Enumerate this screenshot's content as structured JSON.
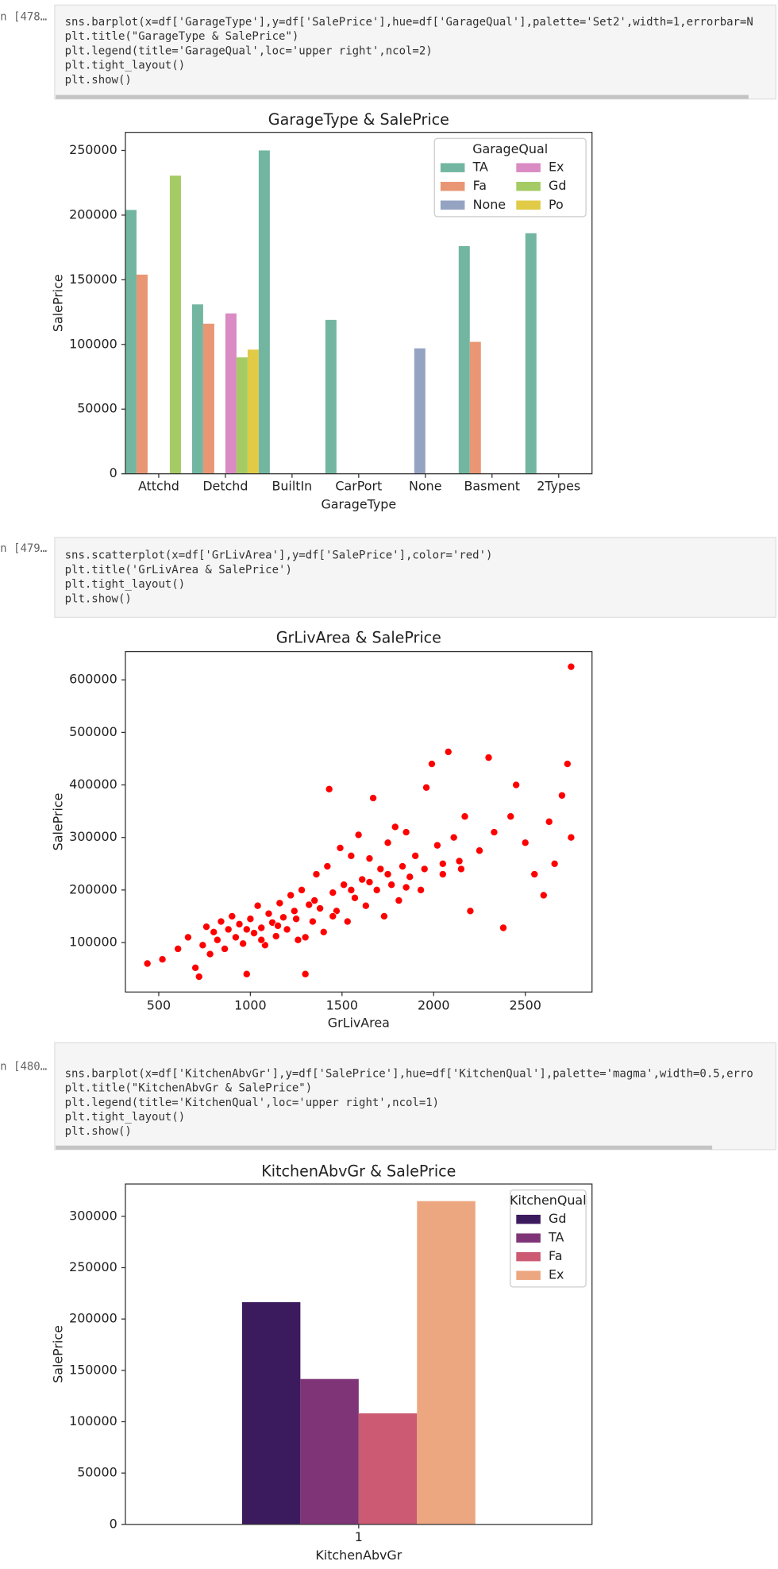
{
  "cells": [
    {
      "prompt": "n [478…",
      "code": [
        "sns.barplot(x=df['GarageType'],y=df['SalePrice'],hue=df['GarageQual'],palette='Set2',width=1,errorbar=N",
        "plt.title(\"GarageType & SalePrice\")",
        "plt.legend(title='GarageQual',loc='upper right',ncol=2)",
        "plt.tight_layout()",
        "plt.show()"
      ]
    },
    {
      "prompt": "n [479…",
      "code": [
        "sns.scatterplot(x=df['GrLivArea'],y=df['SalePrice'],color='red')",
        "plt.title('GrLivArea & SalePrice')",
        "plt.tight_layout()",
        "plt.show()"
      ]
    },
    {
      "prompt": "n [480…",
      "code": [
        "sns.barplot(x=df['KitchenAbvGr'],y=df['SalePrice'],hue=df['KitchenQual'],palette='magma',width=0.5,erro",
        "plt.title(\"KitchenAbvGr & SalePrice\")",
        "plt.legend(title='KitchenQual',loc='upper right',ncol=1)",
        "plt.tight_layout()",
        "plt.show()"
      ]
    }
  ],
  "chart_data": [
    {
      "type": "bar",
      "title": "GarageType & SalePrice",
      "x_label": "GarageType",
      "y_label": "SalePrice",
      "categories": [
        "Attchd",
        "Detchd",
        "BuiltIn",
        "CarPort",
        "None",
        "Basment",
        "2Types"
      ],
      "series": [
        {
          "name": "TA",
          "color": "#72b6a1",
          "values": [
            204000,
            131000,
            250000,
            119000,
            null,
            176000,
            186000
          ]
        },
        {
          "name": "Fa",
          "color": "#e99675",
          "values": [
            154000,
            116000,
            null,
            null,
            null,
            102000,
            null
          ]
        },
        {
          "name": "None",
          "color": "#95a3c3",
          "values": [
            null,
            null,
            null,
            null,
            97000,
            null,
            null
          ]
        },
        {
          "name": "Ex",
          "color": "#da8bc3",
          "values": [
            null,
            124000,
            null,
            null,
            null,
            null,
            null
          ]
        },
        {
          "name": "Gd",
          "color": "#a4cb64",
          "values": [
            230500,
            90000,
            null,
            null,
            null,
            null,
            null
          ]
        },
        {
          "name": "Po",
          "color": "#e1ca46",
          "values": [
            null,
            96000,
            null,
            null,
            null,
            null,
            null
          ]
        }
      ],
      "legend_title": "GarageQual",
      "legend_loc": "upper right",
      "legend_columns": 2,
      "ylim": [
        0,
        264000
      ],
      "yticks": [
        0,
        50000,
        100000,
        150000,
        200000,
        250000
      ]
    },
    {
      "type": "scatter",
      "title": "GrLivArea & SalePrice",
      "x_label": "GrLivArea",
      "y_label": "SalePrice",
      "color": "#ff0000",
      "x": [
        438,
        520,
        605,
        660,
        700,
        720,
        740,
        760,
        780,
        800,
        820,
        840,
        860,
        880,
        900,
        920,
        940,
        960,
        980,
        1000,
        1020,
        1040,
        1060,
        1080,
        1100,
        1120,
        1140,
        1160,
        1180,
        1200,
        1220,
        1240,
        1260,
        1280,
        1300,
        1320,
        1340,
        1360,
        1380,
        1400,
        1420,
        1430,
        1450,
        1470,
        1490,
        1510,
        1530,
        1550,
        1570,
        1590,
        1610,
        1630,
        1650,
        1670,
        1690,
        1710,
        1730,
        1750,
        1770,
        1790,
        1810,
        1830,
        1850,
        1870,
        1900,
        1930,
        1960,
        1990,
        2020,
        2050,
        2080,
        2110,
        2140,
        2170,
        2200,
        2250,
        2300,
        2330,
        2380,
        2420,
        2450,
        2500,
        2550,
        2600,
        2630,
        2660,
        2700,
        2730,
        2750,
        2750,
        1300,
        980,
        1060,
        1150,
        1250,
        1350,
        1450,
        1550,
        1650,
        1750,
        1850,
        1950,
        2050,
        2150
      ],
      "y": [
        60000,
        68000,
        88000,
        110000,
        52000,
        35000,
        95000,
        130000,
        78000,
        120000,
        105000,
        140000,
        88000,
        125000,
        150000,
        110000,
        135000,
        98000,
        40000,
        145000,
        118000,
        170000,
        128000,
        95000,
        155000,
        138000,
        112000,
        175000,
        148000,
        125000,
        190000,
        160000,
        105000,
        200000,
        40000,
        172000,
        140000,
        230000,
        165000,
        120000,
        245000,
        392000,
        195000,
        160000,
        280000,
        210000,
        140000,
        265000,
        185000,
        305000,
        220000,
        170000,
        260000,
        375000,
        200000,
        240000,
        150000,
        290000,
        210000,
        320000,
        180000,
        245000,
        310000,
        225000,
        265000,
        200000,
        395000,
        440000,
        285000,
        230000,
        463000,
        300000,
        255000,
        340000,
        160000,
        275000,
        452000,
        310000,
        128000,
        340000,
        400000,
        290000,
        230000,
        190000,
        330000,
        250000,
        380000,
        440000,
        625000,
        300000,
        110000,
        125000,
        105000,
        132000,
        145000,
        180000,
        150000,
        200000,
        215000,
        230000,
        205000,
        240000,
        250000,
        240000
      ],
      "xlim": [
        318,
        2864
      ],
      "xticks": [
        500,
        1000,
        1500,
        2000,
        2500
      ],
      "ylim": [
        5800,
        653800
      ],
      "yticks": [
        100000,
        200000,
        300000,
        400000,
        500000,
        600000
      ]
    },
    {
      "type": "bar",
      "title": "KitchenAbvGr & SalePrice",
      "x_label": "KitchenAbvGr",
      "y_label": "SalePrice",
      "categories": [
        "1"
      ],
      "series": [
        {
          "name": "Gd",
          "color": "#3c1a5e",
          "values": [
            216400
          ]
        },
        {
          "name": "TA",
          "color": "#7f3477",
          "values": [
            141600
          ]
        },
        {
          "name": "Fa",
          "color": "#cb5a72",
          "values": [
            108200
          ]
        },
        {
          "name": "Ex",
          "color": "#eca680",
          "values": [
            314800
          ]
        }
      ],
      "legend_title": "KitchenQual",
      "legend_loc": "upper right",
      "legend_columns": 1,
      "ylim": [
        0,
        331500
      ],
      "yticks": [
        0,
        50000,
        100000,
        150000,
        200000,
        250000,
        300000
      ]
    }
  ]
}
